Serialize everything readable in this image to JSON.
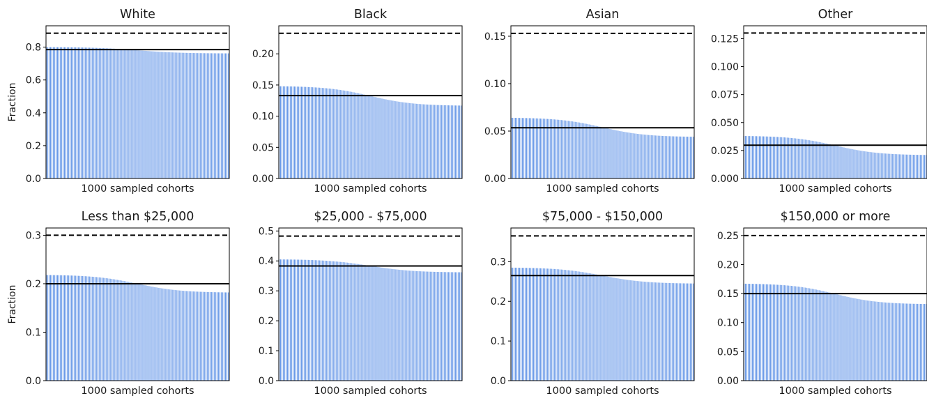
{
  "chart_data": [
    {
      "type": "bar",
      "title": "White",
      "xlabel": "1000 sampled cohorts",
      "ylabel": "Fraction",
      "ylim": [
        0,
        0.93
      ],
      "yticks": [
        "0.0",
        "0.2",
        "0.4",
        "0.6",
        "0.8"
      ],
      "bars": {
        "count": 1000,
        "max": 0.8,
        "min": 0.762,
        "color": "#6a9ae8"
      },
      "solid_line": 0.785,
      "dashed_line": 0.885
    },
    {
      "type": "bar",
      "title": "Black",
      "xlabel": "1000 sampled cohorts",
      "ylabel": "",
      "ylim": [
        0,
        0.245
      ],
      "yticks": [
        "0.00",
        "0.05",
        "0.10",
        "0.15",
        "0.20"
      ],
      "bars": {
        "count": 1000,
        "max": 0.148,
        "min": 0.117,
        "color": "#6a9ae8"
      },
      "solid_line": 0.133,
      "dashed_line": 0.233
    },
    {
      "type": "bar",
      "title": "Asian",
      "xlabel": "1000 sampled cohorts",
      "ylabel": "",
      "ylim": [
        0,
        0.161
      ],
      "yticks": [
        "0.00",
        "0.05",
        "0.10",
        "0.15"
      ],
      "bars": {
        "count": 1000,
        "max": 0.064,
        "min": 0.044,
        "color": "#6a9ae8"
      },
      "solid_line": 0.0535,
      "dashed_line": 0.153
    },
    {
      "type": "bar",
      "title": "Other",
      "xlabel": "1000 sampled cohorts",
      "ylabel": "",
      "ylim": [
        0,
        0.1365
      ],
      "yticks": [
        "0.000",
        "0.025",
        "0.050",
        "0.075",
        "0.100",
        "0.125"
      ],
      "bars": {
        "count": 1000,
        "max": 0.038,
        "min": 0.021,
        "color": "#6a9ae8"
      },
      "solid_line": 0.0298,
      "dashed_line": 0.13
    },
    {
      "type": "bar",
      "title": "Less than $25,000",
      "xlabel": "1000 sampled cohorts",
      "ylabel": "Fraction",
      "ylim": [
        0,
        0.315
      ],
      "yticks": [
        "0.0",
        "0.1",
        "0.2",
        "0.3"
      ],
      "bars": {
        "count": 1000,
        "max": 0.218,
        "min": 0.182,
        "color": "#6a9ae8"
      },
      "solid_line": 0.2,
      "dashed_line": 0.3
    },
    {
      "type": "bar",
      "title": "$25,000 - $75,000",
      "xlabel": "1000 sampled cohorts",
      "ylabel": "",
      "ylim": [
        0,
        0.51
      ],
      "yticks": [
        "0.0",
        "0.1",
        "0.2",
        "0.3",
        "0.4",
        "0.5"
      ],
      "bars": {
        "count": 1000,
        "max": 0.405,
        "min": 0.362,
        "color": "#6a9ae8"
      },
      "solid_line": 0.383,
      "dashed_line": 0.483
    },
    {
      "type": "bar",
      "title": "$75,000 - $150,000",
      "xlabel": "1000 sampled cohorts",
      "ylabel": "",
      "ylim": [
        0,
        0.385
      ],
      "yticks": [
        "0.0",
        "0.1",
        "0.2",
        "0.3"
      ],
      "bars": {
        "count": 1000,
        "max": 0.285,
        "min": 0.245,
        "color": "#6a9ae8"
      },
      "solid_line": 0.265,
      "dashed_line": 0.365
    },
    {
      "type": "bar",
      "title": "$150,000 or more",
      "xlabel": "1000 sampled cohorts",
      "ylabel": "",
      "ylim": [
        0,
        0.263
      ],
      "yticks": [
        "0.00",
        "0.05",
        "0.10",
        "0.15",
        "0.20",
        "0.25"
      ],
      "bars": {
        "count": 1000,
        "max": 0.167,
        "min": 0.132,
        "color": "#6a9ae8"
      },
      "solid_line": 0.15,
      "dashed_line": 0.25
    }
  ]
}
